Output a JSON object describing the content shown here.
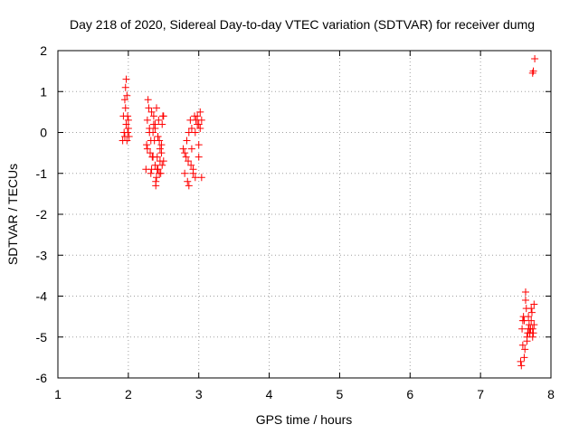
{
  "chart_data": {
    "type": "scatter",
    "title": "Day 218 of 2020, Sidereal Day-to-day VTEC variation (SDTVAR) for receiver dumg",
    "xlabel": "GPS time / hours",
    "ylabel": "SDTVAR / TECUs",
    "xlim": [
      1,
      8
    ],
    "ylim": [
      -6,
      2
    ],
    "xticks": [
      1,
      2,
      3,
      4,
      5,
      6,
      7,
      8
    ],
    "yticks": [
      -6,
      -5,
      -4,
      -3,
      -2,
      -1,
      0,
      1,
      2
    ],
    "grid": true,
    "marker": "+",
    "color": "#ff0000",
    "series": [
      {
        "x": [
          1.92,
          1.93,
          1.94,
          1.95,
          1.96,
          1.97,
          1.98,
          1.99,
          2.0,
          2.01,
          1.95,
          1.96,
          1.97,
          1.98,
          1.99,
          2.0,
          2.25,
          2.26,
          2.27,
          2.28,
          2.29,
          2.3,
          2.31,
          2.32,
          2.33,
          2.34,
          2.35,
          2.36,
          2.37,
          2.38,
          2.39,
          2.4,
          2.41,
          2.42,
          2.43,
          2.44,
          2.45,
          2.46,
          2.47,
          2.48,
          2.49,
          2.5,
          2.27,
          2.3,
          2.33,
          2.36,
          2.39,
          2.42,
          2.45,
          2.48,
          2.32,
          2.35,
          2.38,
          2.41,
          2.44,
          2.47,
          2.5,
          2.38,
          2.4,
          2.42,
          2.78,
          2.8,
          2.82,
          2.84,
          2.86,
          2.88,
          2.9,
          2.92,
          2.94,
          2.96,
          2.98,
          3.0,
          3.02,
          3.04,
          2.8,
          2.83,
          2.86,
          2.89,
          2.92,
          2.95,
          2.98,
          3.0,
          3.02,
          3.04,
          2.85,
          2.9,
          2.95,
          3.0,
          7.57,
          7.58,
          7.59,
          7.6,
          7.61,
          7.62,
          7.63,
          7.64,
          7.65,
          7.66,
          7.67,
          7.68,
          7.69,
          7.7,
          7.71,
          7.72,
          7.73,
          7.74,
          7.75,
          7.76,
          7.6,
          7.62,
          7.64,
          7.66,
          7.68,
          7.7,
          7.72,
          7.74,
          7.76,
          7.77,
          7.74,
          7.75
        ],
        "y": [
          -0.2,
          0.4,
          0.0,
          -0.1,
          0.6,
          1.3,
          0.9,
          0.4,
          0.1,
          -0.1,
          0.8,
          1.1,
          0.2,
          -0.2,
          0.0,
          0.3,
          -0.9,
          -0.3,
          0.3,
          0.8,
          0.6,
          0.1,
          -0.5,
          -1.0,
          -0.9,
          -0.6,
          0.0,
          0.4,
          -0.2,
          -0.8,
          -1.3,
          -1.1,
          -0.6,
          -0.1,
          0.3,
          -0.2,
          -0.7,
          -1.0,
          -0.5,
          0.2,
          0.4,
          0.4,
          -0.4,
          0.0,
          0.5,
          0.2,
          -1.2,
          -0.9,
          -0.4,
          -0.8,
          -0.2,
          -0.6,
          0.1,
          -0.9,
          -1.0,
          -0.3,
          -0.7,
          0.2,
          0.6,
          -0.1,
          -0.4,
          -1.0,
          -0.6,
          -1.2,
          -1.3,
          0.3,
          0.1,
          -0.9,
          0.4,
          0.3,
          0.2,
          -0.6,
          0.5,
          -1.1,
          -0.5,
          -0.2,
          0.0,
          -0.8,
          -1.0,
          0.0,
          0.4,
          -0.3,
          0.1,
          0.3,
          -0.7,
          -0.4,
          -1.1,
          0.2,
          -5.6,
          -5.7,
          -4.8,
          -4.6,
          -4.5,
          -5.5,
          -5.3,
          -3.9,
          -4.3,
          -5.1,
          -4.9,
          -4.5,
          -4.7,
          -4.9,
          -4.8,
          -4.3,
          -4.4,
          -5.0,
          -4.9,
          -4.2,
          -5.2,
          -4.6,
          -4.1,
          -5.0,
          -4.8,
          -4.9,
          -4.6,
          -4.8,
          -4.7,
          1.8,
          1.45,
          1.5
        ]
      }
    ]
  }
}
